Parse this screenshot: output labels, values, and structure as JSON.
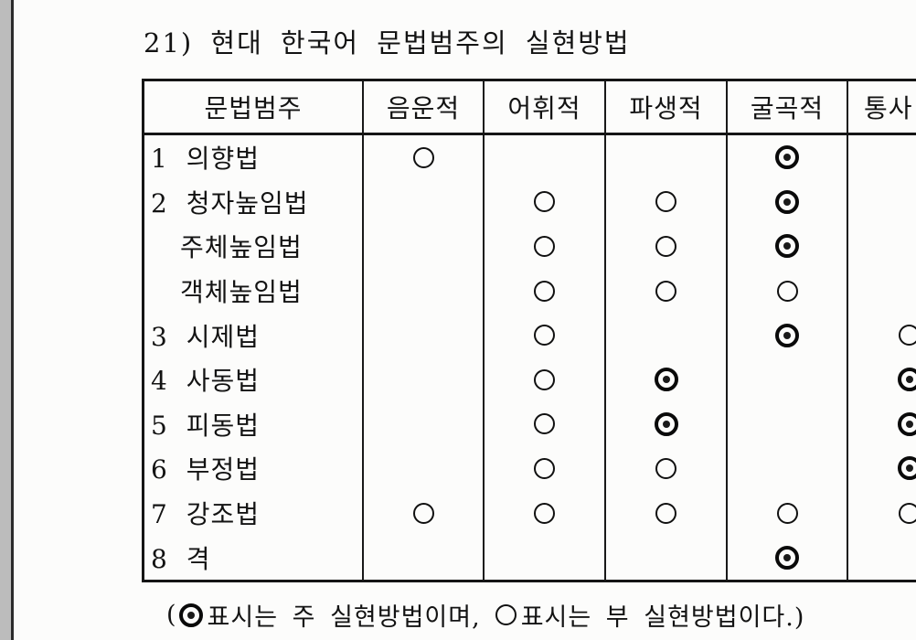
{
  "page": {
    "title": "21) 현대 한국어 문법범주의 실현방법"
  },
  "table": {
    "columns": [
      "문법범주",
      "음운적",
      "어휘적",
      "파생적",
      "굴곡적",
      "통사"
    ],
    "rows": [
      {
        "label": "1 의향법",
        "indent": false,
        "cells": [
          "secondary",
          "",
          "",
          "primary",
          ""
        ]
      },
      {
        "label": "2 청자높임법",
        "indent": false,
        "cells": [
          "",
          "secondary",
          "secondary",
          "primary",
          ""
        ]
      },
      {
        "label": "주체높임법",
        "indent": true,
        "cells": [
          "",
          "secondary",
          "secondary",
          "primary",
          ""
        ]
      },
      {
        "label": "객체높임법",
        "indent": true,
        "cells": [
          "",
          "secondary",
          "secondary",
          "secondary",
          ""
        ]
      },
      {
        "label": "3 시제법",
        "indent": false,
        "cells": [
          "",
          "secondary",
          "",
          "primary",
          "secondary"
        ]
      },
      {
        "label": "4 사동법",
        "indent": false,
        "cells": [
          "",
          "secondary",
          "primary",
          "",
          "primary"
        ]
      },
      {
        "label": "5 피동법",
        "indent": false,
        "cells": [
          "",
          "secondary",
          "primary",
          "",
          "primary"
        ]
      },
      {
        "label": "6 부정법",
        "indent": false,
        "cells": [
          "",
          "secondary",
          "secondary",
          "",
          "primary"
        ]
      },
      {
        "label": "7 강조법",
        "indent": false,
        "cells": [
          "secondary",
          "secondary",
          "secondary",
          "secondary",
          "secondary"
        ]
      },
      {
        "label": "8 격",
        "indent": false,
        "cells": [
          "",
          "",
          "",
          "primary",
          ""
        ]
      }
    ],
    "symbols": {
      "primary": "◉",
      "secondary": "○"
    }
  },
  "legend": {
    "prefix": "(",
    "primary_text": "표시는 주 실현방법이며,",
    "secondary_text": "표시는 부 실현방법이다.)"
  },
  "colors": {
    "page_background": "#fcfcfb",
    "scan_strip": "#bcbcbc",
    "scan_edge": "#2b2b2b",
    "ink": "#131313"
  }
}
